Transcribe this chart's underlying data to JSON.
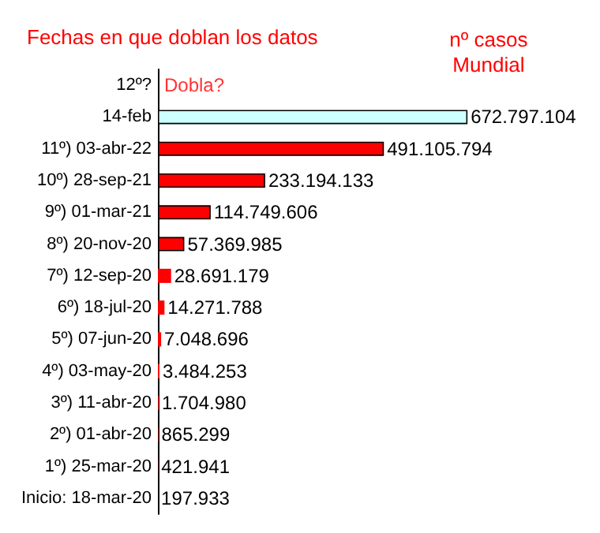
{
  "chart_data": {
    "type": "bar",
    "orientation": "horizontal",
    "title": "Fechas en que doblan los datos",
    "xlabel": "nº casos\nMundial",
    "categories": [
      "12º?",
      "14-feb",
      "11º) 03-abr-22",
      "10º) 28-sep-21",
      "9º) 01-mar-21",
      "8º) 20-nov-20",
      "7º) 12-sep-20",
      "6º) 18-jul-20",
      "5º) 07-jun-20",
      "4º) 03-may-20",
      "3º) 11-abr-20",
      "2º) 01-abr-20",
      "1º) 25-mar-20",
      "Inicio: 18-mar-20"
    ],
    "values": [
      null,
      672797104,
      491105794,
      233194133,
      114749606,
      57369985,
      28691179,
      14271788,
      7048696,
      3484253,
      1704980,
      865299,
      421941,
      197933
    ],
    "value_labels": [
      null,
      "672.797.104",
      "491.105.794",
      "233.194.133",
      "114.749.606",
      "57.369.985",
      "28.691.179",
      "14.271.788",
      "7.048.696",
      "3.484.253",
      "1.704.980",
      "865.299",
      "421.941",
      "197.933"
    ],
    "colors": [
      "#ff0000",
      "#ccffff",
      "#ff0000",
      "#ff0000",
      "#ff0000",
      "#ff0000",
      "#ff0000",
      "#ff0000",
      "#ff0000",
      "#ff0000",
      "#ff0000",
      "#ff0000",
      "#ff0000",
      "#ff0000"
    ],
    "annotations": [
      "Dobla?"
    ],
    "tick_labels": "y",
    "grid": false
  }
}
